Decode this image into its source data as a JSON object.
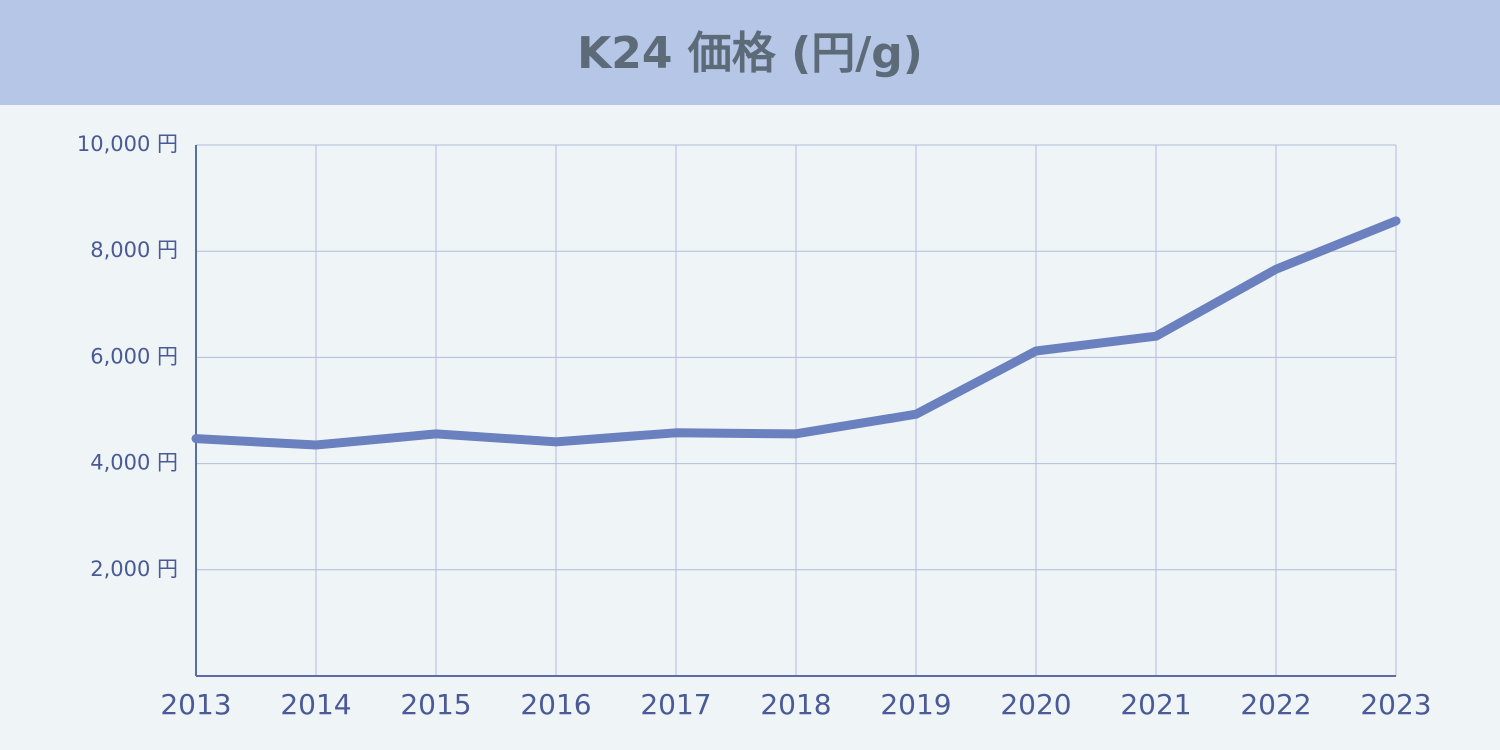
{
  "chart_data": {
    "type": "line",
    "title": "K24 価格 (円/g)",
    "categories": [
      "2013",
      "2014",
      "2015",
      "2016",
      "2017",
      "2018",
      "2019",
      "2020",
      "2021",
      "2022",
      "2023"
    ],
    "series": [
      {
        "name": "K24",
        "color": "#6a80bf",
        "values": [
          4470,
          4350,
          4560,
          4410,
          4580,
          4560,
          4930,
          6120,
          6400,
          7660,
          8570
        ]
      }
    ],
    "ylim": [
      0,
      10000
    ],
    "yticks": [
      {
        "value": 2000,
        "label": "2,000 円"
      },
      {
        "value": 4000,
        "label": "4,000 円"
      },
      {
        "value": 6000,
        "label": "6,000 円"
      },
      {
        "value": 8000,
        "label": "8,000 円"
      },
      {
        "value": 10000,
        "label": "10,000 円"
      }
    ],
    "grid": true
  }
}
